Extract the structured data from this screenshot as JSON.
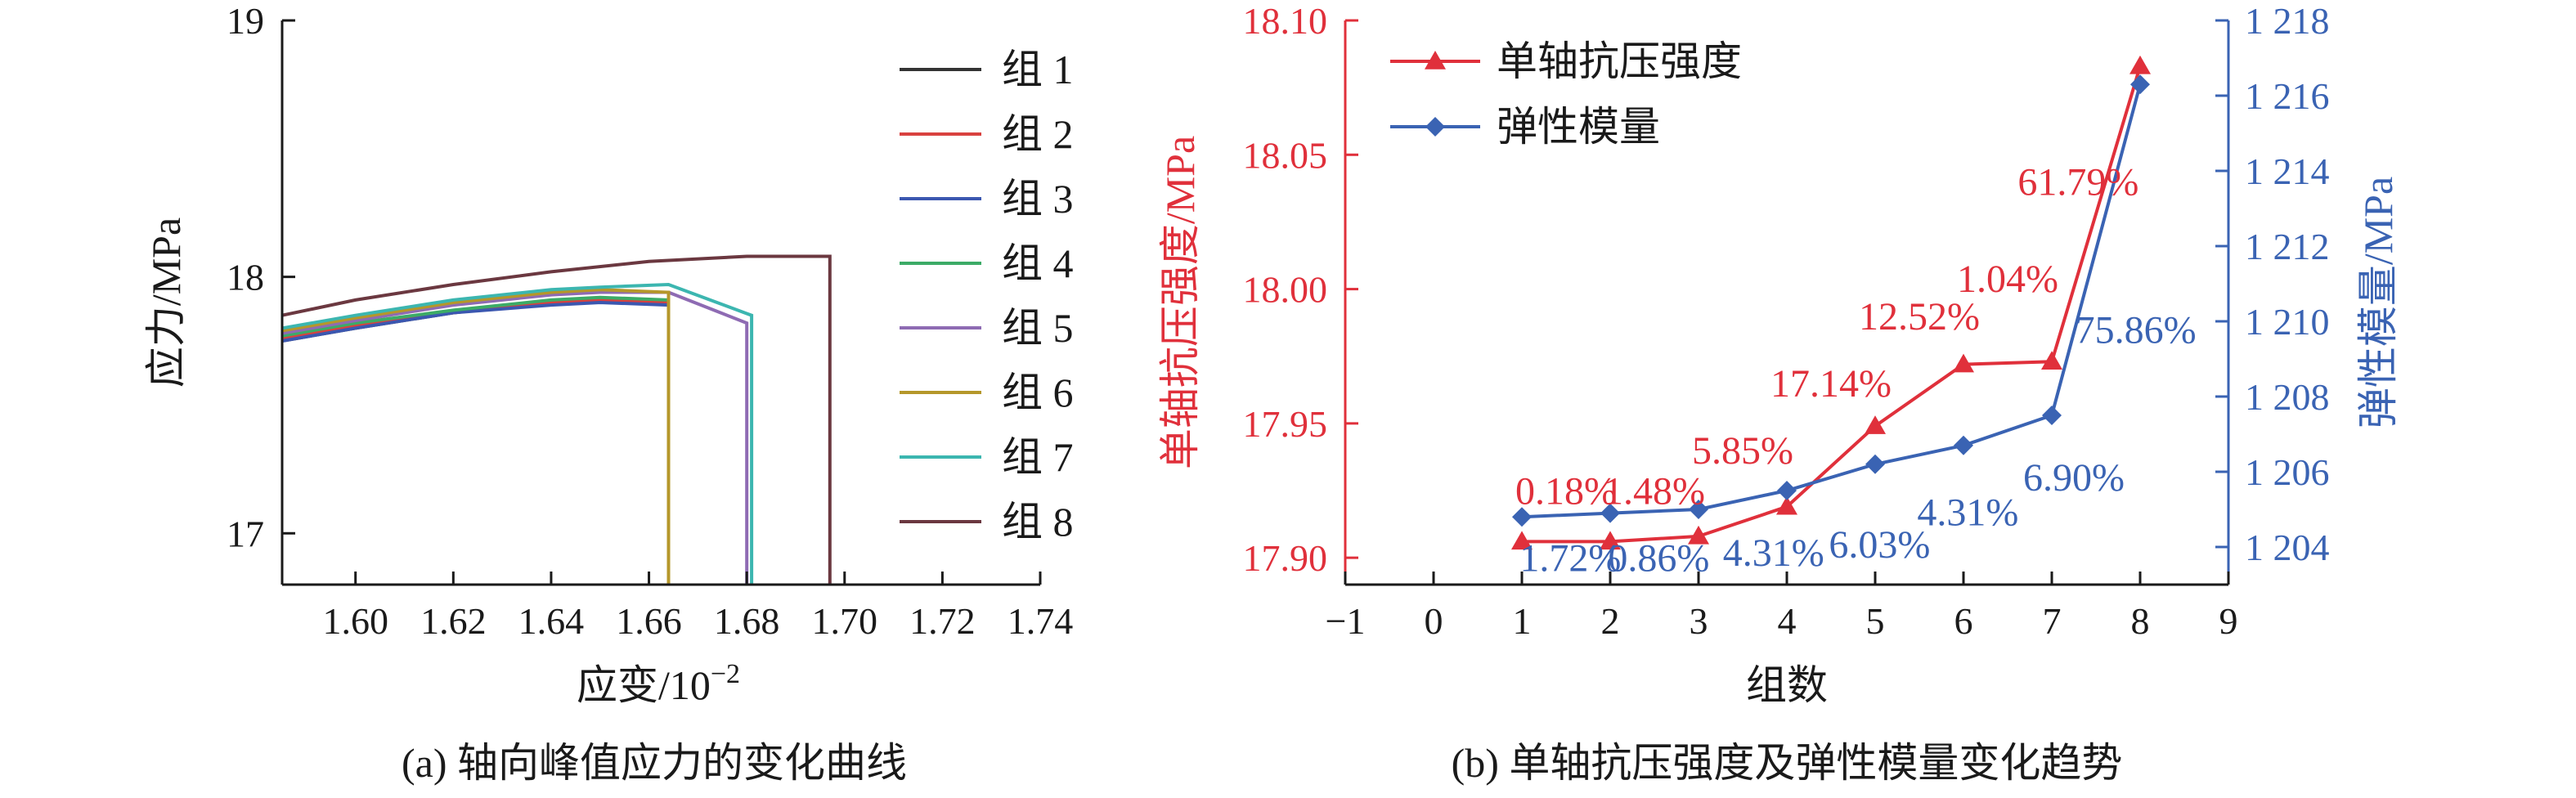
{
  "colors": {
    "axis": "#1a1a1a",
    "red_series": "#e0303b",
    "blue_series": "#3a63b3",
    "red_axis_label": "#e0303b",
    "blue_axis_label": "#3a63b3"
  },
  "chart_data": [
    {
      "type": "line",
      "panel": "a",
      "caption": "(a) 轴向峰值应力的变化曲线",
      "xlabel_text": "应变/10",
      "xlabel_exp": "−2",
      "ylabel": "应力/MPa",
      "xlim": [
        1.585,
        1.74
      ],
      "ylim": [
        16.8,
        19.0
      ],
      "xticks": [
        "1.60",
        "1.62",
        "1.64",
        "1.66",
        "1.68",
        "1.70",
        "1.72",
        "1.74"
      ],
      "xtick_values": [
        1.6,
        1.62,
        1.64,
        1.66,
        1.68,
        1.7,
        1.72,
        1.74
      ],
      "yticks": [
        "17",
        "18",
        "19"
      ],
      "ytick_values": [
        17,
        18,
        19
      ],
      "legend_position": "right",
      "series": [
        {
          "name": "组 1",
          "color": "#333333",
          "x": [
            1.585,
            1.6,
            1.62,
            1.64,
            1.65,
            1.664,
            1.664
          ],
          "y": [
            17.75,
            17.8,
            17.86,
            17.9,
            17.91,
            17.9,
            16.8
          ]
        },
        {
          "name": "组 2",
          "color": "#d9413f",
          "x": [
            1.585,
            1.6,
            1.62,
            1.64,
            1.65,
            1.664,
            1.664
          ],
          "y": [
            17.76,
            17.81,
            17.86,
            17.9,
            17.91,
            17.9,
            16.8
          ]
        },
        {
          "name": "组 3",
          "color": "#3b57b0",
          "x": [
            1.585,
            1.6,
            1.62,
            1.64,
            1.65,
            1.664,
            1.664
          ],
          "y": [
            17.75,
            17.8,
            17.86,
            17.89,
            17.9,
            17.89,
            16.8
          ]
        },
        {
          "name": "组 4",
          "color": "#3cab67",
          "x": [
            1.585,
            1.6,
            1.62,
            1.64,
            1.65,
            1.664,
            1.664
          ],
          "y": [
            17.77,
            17.82,
            17.87,
            17.91,
            17.92,
            17.91,
            16.8
          ]
        },
        {
          "name": "组 5",
          "color": "#8e6bb3",
          "x": [
            1.585,
            1.6,
            1.62,
            1.64,
            1.65,
            1.664,
            1.68,
            1.68
          ],
          "y": [
            17.78,
            17.83,
            17.89,
            17.93,
            17.94,
            17.94,
            17.82,
            16.8
          ]
        },
        {
          "name": "组 6",
          "color": "#b5972a",
          "x": [
            1.585,
            1.6,
            1.62,
            1.64,
            1.65,
            1.664,
            1.664
          ],
          "y": [
            17.79,
            17.84,
            17.9,
            17.94,
            17.95,
            17.94,
            16.8
          ]
        },
        {
          "name": "组 7",
          "color": "#3cb6b0",
          "x": [
            1.585,
            1.6,
            1.62,
            1.64,
            1.65,
            1.664,
            1.681,
            1.681
          ],
          "y": [
            17.8,
            17.85,
            17.91,
            17.95,
            17.96,
            17.97,
            17.85,
            16.8
          ]
        },
        {
          "name": "组 8",
          "color": "#6b3840",
          "x": [
            1.585,
            1.6,
            1.62,
            1.64,
            1.66,
            1.68,
            1.697,
            1.697
          ],
          "y": [
            17.85,
            17.91,
            17.97,
            18.02,
            18.06,
            18.08,
            18.08,
            16.8
          ]
        }
      ]
    },
    {
      "type": "line",
      "panel": "b",
      "caption": "(b) 单轴抗压强度及弹性模量变化趋势",
      "xlabel": "组数",
      "ylabel_left": "单轴抗压强度/MPa",
      "ylabel_right": "弹性模量/MPa",
      "xlim": [
        -1,
        9
      ],
      "ylim_left": [
        17.89,
        18.1
      ],
      "ylim_right": [
        1203,
        1218
      ],
      "xticks": [
        "−1",
        "0",
        "1",
        "2",
        "3",
        "4",
        "5",
        "6",
        "7",
        "8",
        "9"
      ],
      "xtick_values": [
        -1,
        0,
        1,
        2,
        3,
        4,
        5,
        6,
        7,
        8,
        9
      ],
      "yticks_left": [
        "17.90",
        "17.95",
        "18.00",
        "18.05",
        "18.10"
      ],
      "ytick_values_left": [
        17.9,
        17.95,
        18.0,
        18.05,
        18.1
      ],
      "yticks_right": [
        "1 204",
        "1 206",
        "1 208",
        "1 210",
        "1 212",
        "1 214",
        "1 216",
        "1 218"
      ],
      "ytick_values_right": [
        1204,
        1206,
        1208,
        1210,
        1212,
        1214,
        1216,
        1218
      ],
      "legend_position": "top-left",
      "series": [
        {
          "name": "单轴抗压强度",
          "axis": "left",
          "marker": "triangle",
          "color": "#e0303b",
          "x": [
            1,
            2,
            3,
            4,
            5,
            6,
            7,
            8
          ],
          "y": [
            17.906,
            17.906,
            17.908,
            17.919,
            17.949,
            17.972,
            17.973,
            18.083
          ]
        },
        {
          "name": "弹性模量",
          "axis": "right",
          "marker": "diamond",
          "color": "#3a63b3",
          "x": [
            1,
            2,
            3,
            4,
            5,
            6,
            7,
            8
          ],
          "y": [
            1204.8,
            1204.9,
            1205.0,
            1205.5,
            1206.2,
            1206.7,
            1207.5,
            1216.3
          ]
        }
      ],
      "annotations_red": [
        {
          "text": "0.18%",
          "x": 1.5,
          "y": 17.92
        },
        {
          "text": "1.48%",
          "x": 2.5,
          "y": 17.92
        },
        {
          "text": "5.85%",
          "x": 3.5,
          "y": 17.935
        },
        {
          "text": "17.14%",
          "x": 4.5,
          "y": 17.96
        },
        {
          "text": "12.52%",
          "x": 5.5,
          "y": 17.985
        },
        {
          "text": "1.04%",
          "x": 6.5,
          "y": 17.999
        },
        {
          "text": "61.79%",
          "x": 7.3,
          "y": 18.035
        }
      ],
      "annotations_blue": [
        {
          "text": "1.72%",
          "x": 1.55,
          "y": 17.895
        },
        {
          "text": "0.86%",
          "x": 2.55,
          "y": 17.895
        },
        {
          "text": "4.31%",
          "x": 3.85,
          "y": 17.897
        },
        {
          "text": "6.03%",
          "x": 5.05,
          "y": 17.9
        },
        {
          "text": "4.31%",
          "x": 6.05,
          "y": 17.912
        },
        {
          "text": "6.90%",
          "x": 7.25,
          "y": 17.925
        },
        {
          "text": "75.86%",
          "x": 7.95,
          "y": 17.98
        }
      ]
    }
  ]
}
